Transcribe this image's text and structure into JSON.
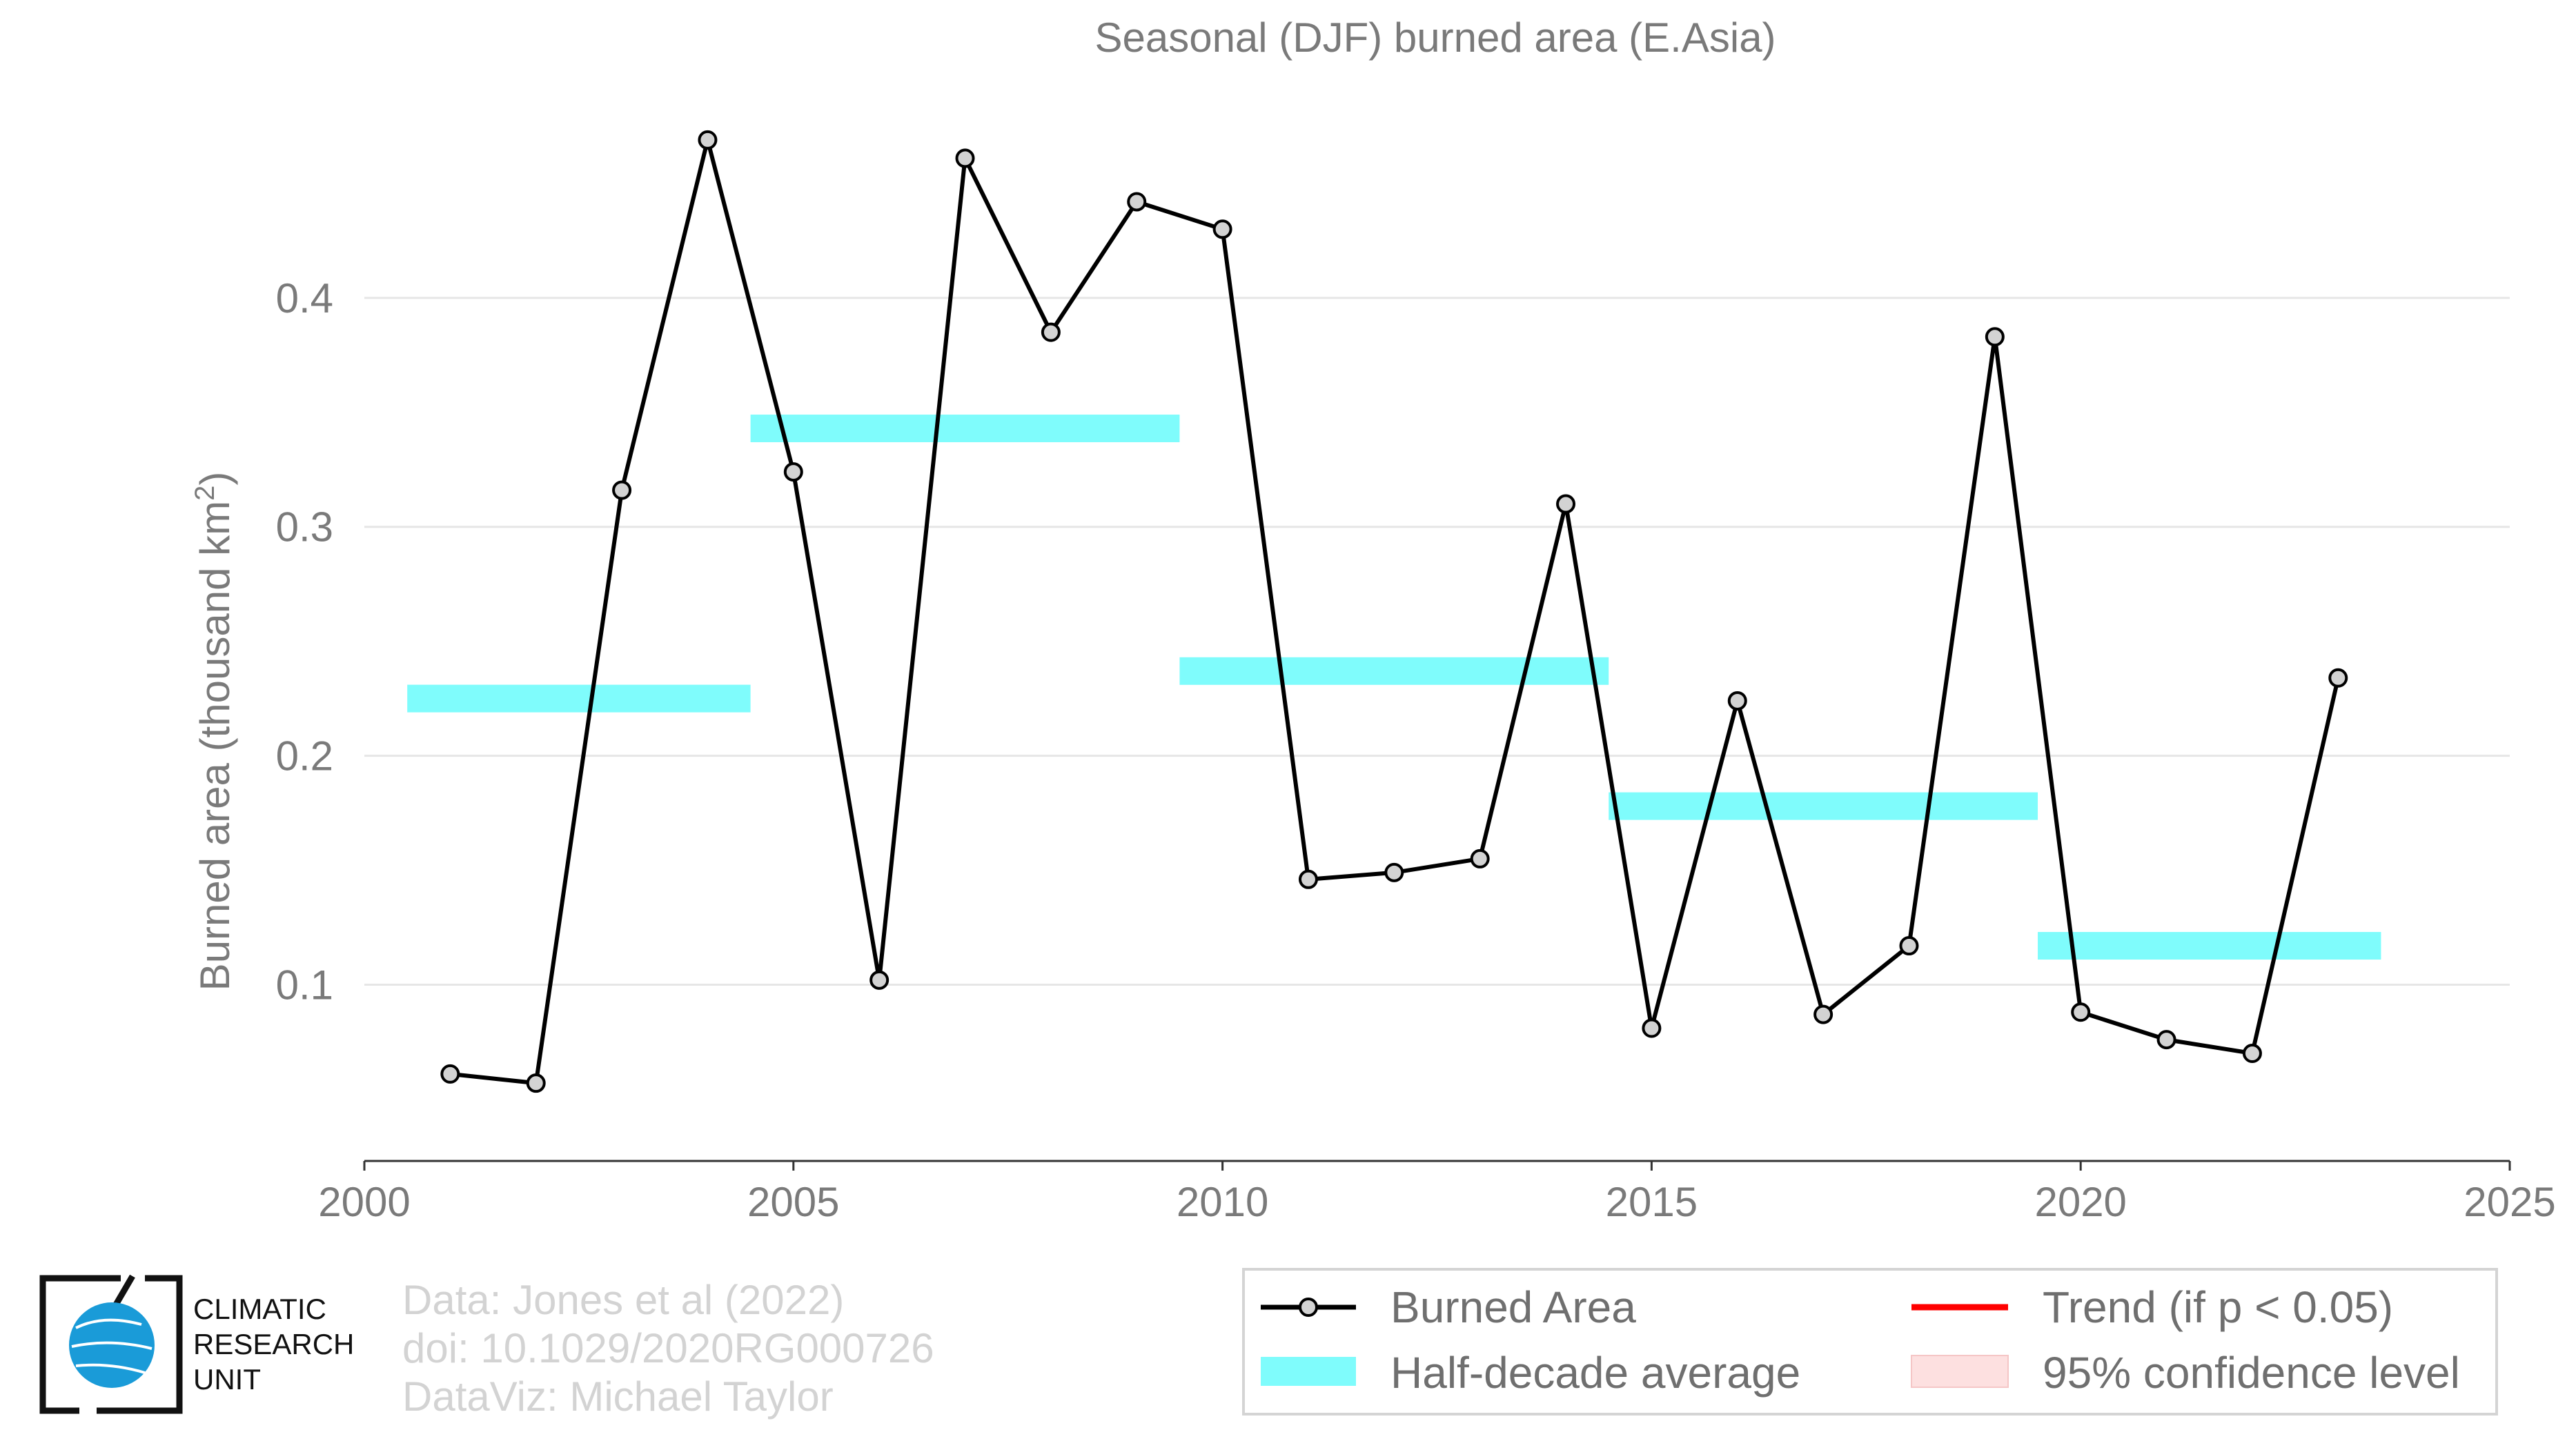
{
  "chart_data": {
    "type": "line",
    "title": "Seasonal (DJF) burned area (E.Asia)",
    "ylabel_main": "Burned area (thousand km",
    "ylabel_sup": "2",
    "ylabel_end": ")",
    "xlim": [
      2000,
      2025
    ],
    "ylim": [
      0.023,
      0.5
    ],
    "xticks": [
      2000,
      2005,
      2010,
      2015,
      2020,
      2025
    ],
    "yticks": [
      0.1,
      0.2,
      0.3,
      0.4
    ],
    "ytick_labels": [
      "0.1",
      "0.2",
      "0.3",
      "0.4"
    ],
    "grid": true,
    "series": [
      {
        "name": "Burned Area",
        "color": "#000000",
        "marker_fill": "#d3d3d3",
        "x": [
          2001,
          2002,
          2003,
          2004,
          2005,
          2006,
          2007,
          2008,
          2009,
          2010,
          2011,
          2012,
          2013,
          2014,
          2015,
          2016,
          2017,
          2018,
          2019,
          2020,
          2021,
          2022,
          2023
        ],
        "y": [
          0.061,
          0.057,
          0.316,
          0.469,
          0.324,
          0.102,
          0.461,
          0.385,
          0.442,
          0.43,
          0.146,
          0.149,
          0.155,
          0.31,
          0.081,
          0.224,
          0.087,
          0.117,
          0.383,
          0.088,
          0.076,
          0.07,
          0.234
        ]
      }
    ],
    "half_decade_averages": {
      "name": "Half-decade average",
      "color": "#7ffcfc",
      "segments": [
        {
          "x_start": 2000.5,
          "x_end": 2004.5,
          "value": 0.225
        },
        {
          "x_start": 2004.5,
          "x_end": 2009.5,
          "value": 0.343
        },
        {
          "x_start": 2009.5,
          "x_end": 2014.5,
          "value": 0.237
        },
        {
          "x_start": 2014.5,
          "x_end": 2019.5,
          "value": 0.178
        },
        {
          "x_start": 2019.5,
          "x_end": 2023.5,
          "value": 0.117
        }
      ]
    },
    "legend": [
      {
        "label": "Burned Area",
        "kind": "line-marker",
        "color": "#000000"
      },
      {
        "label": "Trend (if p < 0.05)",
        "kind": "line",
        "color": "#ff0000"
      },
      {
        "label": "Half-decade average",
        "kind": "band",
        "color": "#7ffcfc"
      },
      {
        "label": "95% confidence level",
        "kind": "patch",
        "color": "#fde0e0"
      }
    ],
    "legend_position": "bottom-right"
  },
  "credits": {
    "line1": "Data: Jones et al (2022)",
    "line2": "doi: 10.1029/2020RG000726",
    "line3": "DataViz: Michael Taylor"
  },
  "logo": {
    "line1": "CLIMATIC",
    "line2": "RESEARCH",
    "line3": "UNIT"
  },
  "colors": {
    "text_gray": "#7a7a7a",
    "credit_gray": "#d3d3d3",
    "grid": "#e6e6e6",
    "logo_blue": "#1a9bd8"
  }
}
